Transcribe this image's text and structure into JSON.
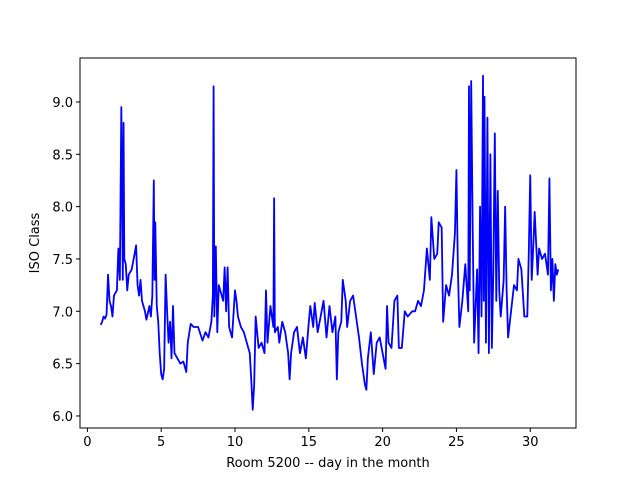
{
  "chart_data": {
    "type": "line",
    "xlabel": "Room 5200 -- day in the month",
    "ylabel": "ISO Class",
    "xlim": [
      -0.5,
      33.1
    ],
    "ylim": [
      5.885,
      9.42
    ],
    "xticks": [
      0,
      5,
      10,
      15,
      20,
      25,
      30
    ],
    "yticks": [
      {
        "value": 6.0,
        "label": "6.0"
      },
      {
        "value": 6.5,
        "label": "6.5"
      },
      {
        "value": 7.0,
        "label": "7.0"
      },
      {
        "value": 7.5,
        "label": "7.5"
      },
      {
        "value": 8.0,
        "label": "8.0"
      },
      {
        "value": 8.5,
        "label": "8.5"
      },
      {
        "value": 9.0,
        "label": "9.0"
      }
    ],
    "grid": false,
    "x": [
      0.9,
      1.0,
      1.1,
      1.2,
      1.3,
      1.4,
      1.5,
      1.6,
      1.7,
      1.8,
      2.0,
      2.1,
      2.2,
      2.3,
      2.4,
      2.45,
      2.5,
      2.6,
      2.7,
      2.8,
      3.0,
      3.2,
      3.3,
      3.4,
      3.5,
      3.6,
      3.7,
      3.9,
      4.0,
      4.2,
      4.3,
      4.4,
      4.5,
      4.55,
      4.6,
      4.7,
      4.8,
      4.9,
      5.0,
      5.1,
      5.2,
      5.3,
      5.4,
      5.5,
      5.6,
      5.7,
      5.8,
      5.9,
      6.1,
      6.3,
      6.5,
      6.7,
      6.8,
      7.0,
      7.2,
      7.5,
      7.8,
      8.0,
      8.2,
      8.4,
      8.5,
      8.55,
      8.6,
      8.7,
      8.8,
      8.9,
      9.0,
      9.2,
      9.3,
      9.4,
      9.5,
      9.6,
      9.8,
      10.0,
      10.1,
      10.2,
      10.4,
      10.6,
      10.8,
      11.0,
      11.1,
      11.2,
      11.3,
      11.4,
      11.6,
      11.8,
      12.0,
      12.1,
      12.2,
      12.4,
      12.6,
      12.65,
      12.7,
      12.9,
      13.0,
      13.2,
      13.4,
      13.6,
      13.7,
      13.8,
      14.0,
      14.2,
      14.4,
      14.6,
      14.8,
      15.0,
      15.1,
      15.3,
      15.4,
      15.6,
      15.8,
      16.0,
      16.2,
      16.4,
      16.6,
      16.8,
      16.9,
      17.0,
      17.2,
      17.3,
      17.5,
      17.6,
      17.8,
      18.0,
      18.2,
      18.4,
      18.6,
      18.8,
      18.9,
      19.0,
      19.2,
      19.4,
      19.6,
      19.8,
      20.0,
      20.2,
      20.3,
      20.4,
      20.6,
      20.8,
      21.0,
      21.1,
      21.3,
      21.5,
      21.7,
      22.0,
      22.2,
      22.4,
      22.6,
      22.8,
      23.0,
      23.2,
      23.3,
      23.5,
      23.7,
      23.8,
      24.0,
      24.1,
      24.3,
      24.5,
      24.7,
      24.9,
      25.0,
      25.1,
      25.2,
      25.4,
      25.6,
      25.8,
      25.85,
      25.9,
      26.0,
      26.1,
      26.2,
      26.4,
      26.5,
      26.6,
      26.7,
      26.8,
      26.85,
      26.9,
      27.0,
      27.1,
      27.2,
      27.3,
      27.4,
      27.5,
      27.6,
      27.7,
      27.8,
      27.9,
      28.0,
      28.2,
      28.3,
      28.4,
      28.5,
      28.7,
      28.9,
      29.1,
      29.2,
      29.4,
      29.6,
      29.8,
      29.9,
      30.0,
      30.1,
      30.2,
      30.3,
      30.5,
      30.6,
      30.8,
      31.0,
      31.2,
      31.3,
      31.4,
      31.5,
      31.6,
      31.7,
      31.8,
      31.9
    ],
    "series": [
      {
        "color": "#0000ff",
        "values": [
          6.87,
          6.9,
          6.95,
          6.93,
          6.97,
          7.35,
          7.1,
          7.05,
          6.95,
          7.15,
          7.2,
          7.6,
          7.3,
          8.95,
          7.3,
          8.8,
          7.5,
          7.45,
          7.2,
          7.35,
          7.4,
          7.55,
          7.63,
          7.25,
          7.15,
          7.3,
          7.1,
          7.0,
          6.92,
          7.05,
          6.95,
          7.15,
          8.25,
          7.3,
          7.85,
          7.05,
          6.9,
          6.6,
          6.4,
          6.35,
          6.45,
          7.35,
          7.0,
          6.7,
          6.9,
          6.55,
          7.05,
          6.6,
          6.55,
          6.5,
          6.52,
          6.42,
          6.7,
          6.88,
          6.85,
          6.85,
          6.72,
          6.8,
          6.75,
          6.9,
          7.15,
          9.15,
          6.95,
          7.62,
          6.8,
          7.25,
          7.2,
          7.1,
          7.42,
          7.0,
          7.42,
          6.85,
          6.75,
          7.2,
          7.1,
          6.95,
          6.85,
          6.8,
          6.7,
          6.6,
          6.35,
          6.06,
          6.3,
          6.95,
          6.65,
          6.7,
          6.6,
          7.2,
          6.7,
          7.05,
          6.85,
          8.08,
          6.8,
          6.85,
          6.7,
          6.9,
          6.8,
          6.6,
          6.35,
          6.6,
          6.8,
          6.85,
          6.6,
          6.75,
          6.55,
          6.9,
          7.05,
          6.85,
          7.08,
          6.8,
          6.95,
          7.1,
          6.75,
          7.05,
          6.8,
          6.95,
          6.35,
          6.8,
          6.9,
          7.3,
          7.1,
          6.85,
          7.1,
          7.15,
          6.95,
          6.75,
          6.5,
          6.3,
          6.25,
          6.55,
          6.8,
          6.4,
          6.7,
          6.75,
          6.6,
          6.45,
          7.05,
          6.7,
          6.65,
          7.1,
          7.15,
          6.65,
          6.65,
          7.0,
          6.95,
          7.0,
          7.0,
          7.1,
          7.05,
          7.2,
          7.6,
          7.3,
          7.9,
          7.5,
          7.55,
          7.85,
          7.8,
          6.9,
          7.25,
          7.15,
          7.35,
          7.75,
          8.35,
          7.4,
          6.85,
          7.1,
          7.45,
          7.0,
          9.15,
          7.2,
          9.2,
          7.8,
          6.7,
          7.4,
          6.6,
          8.0,
          6.95,
          9.25,
          7.1,
          9.05,
          6.7,
          8.85,
          6.6,
          8.5,
          6.65,
          7.4,
          8.7,
          7.1,
          8.15,
          7.2,
          6.95,
          7.3,
          8.0,
          7.2,
          6.75,
          7.0,
          7.25,
          7.2,
          7.5,
          7.4,
          6.95,
          6.95,
          7.55,
          8.3,
          7.3,
          7.6,
          7.95,
          7.35,
          7.6,
          7.5,
          7.55,
          7.35,
          8.27,
          7.2,
          7.5,
          7.1,
          7.45,
          7.35,
          7.4
        ]
      }
    ]
  }
}
